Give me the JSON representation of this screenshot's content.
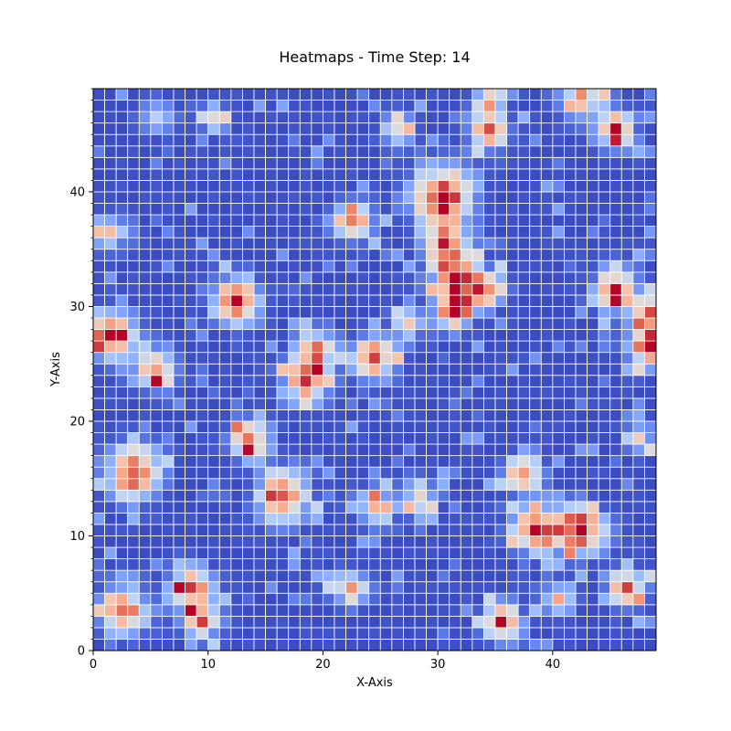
{
  "chart_data": {
    "type": "heatmap",
    "title": "Heatmaps - Time Step: 14",
    "xlabel": "X-Axis",
    "ylabel": "Y-Axis",
    "grid": true,
    "grid_size": [
      49,
      49
    ],
    "xlim": [
      0,
      49
    ],
    "ylim": [
      0,
      49
    ],
    "x_ticks": [
      0,
      10,
      20,
      30,
      40
    ],
    "y_ticks": [
      0,
      10,
      20,
      30,
      40
    ],
    "colormap": "coolwarm",
    "value_range": [
      0,
      1
    ],
    "background_level": 0,
    "hotspots": [
      {
        "x": 1,
        "y": 27,
        "radius": 2.2,
        "intensity": 1.0
      },
      {
        "x": 3,
        "y": 15,
        "radius": 2.5,
        "intensity": 1.0
      },
      {
        "x": 2,
        "y": 3,
        "radius": 2.3,
        "intensity": 0.95
      },
      {
        "x": 8,
        "y": 5,
        "radius": 2.0,
        "intensity": 0.9
      },
      {
        "x": 9,
        "y": 2,
        "radius": 1.6,
        "intensity": 0.85
      },
      {
        "x": 5,
        "y": 24,
        "radius": 2.0,
        "intensity": 0.9
      },
      {
        "x": 5,
        "y": 46,
        "radius": 1.5,
        "intensity": 0.6
      },
      {
        "x": 1,
        "y": 36,
        "radius": 1.7,
        "intensity": 0.7
      },
      {
        "x": 12,
        "y": 30,
        "radius": 2.3,
        "intensity": 0.95
      },
      {
        "x": 13,
        "y": 18,
        "radius": 1.8,
        "intensity": 0.9
      },
      {
        "x": 16,
        "y": 13,
        "radius": 2.4,
        "intensity": 1.0
      },
      {
        "x": 18,
        "y": 23,
        "radius": 2.2,
        "intensity": 0.9
      },
      {
        "x": 19,
        "y": 26,
        "radius": 1.6,
        "intensity": 0.8
      },
      {
        "x": 10,
        "y": 46,
        "radius": 1.5,
        "intensity": 0.6
      },
      {
        "x": 22,
        "y": 37,
        "radius": 1.8,
        "intensity": 0.9
      },
      {
        "x": 22,
        "y": 5,
        "radius": 1.6,
        "intensity": 0.8
      },
      {
        "x": 24,
        "y": 25,
        "radius": 2.0,
        "intensity": 0.95
      },
      {
        "x": 24,
        "y": 12,
        "radius": 1.8,
        "intensity": 0.75
      },
      {
        "x": 26,
        "y": 45,
        "radius": 1.6,
        "intensity": 0.6
      },
      {
        "x": 30,
        "y": 39,
        "radius": 3.0,
        "intensity": 1.0
      },
      {
        "x": 31,
        "y": 32,
        "radius": 2.2,
        "intensity": 0.95
      },
      {
        "x": 31,
        "y": 29,
        "radius": 1.6,
        "intensity": 0.9
      },
      {
        "x": 30,
        "y": 35,
        "radius": 1.6,
        "intensity": 0.75
      },
      {
        "x": 34,
        "y": 45,
        "radius": 1.8,
        "intensity": 0.95
      },
      {
        "x": 34,
        "y": 48,
        "radius": 1.4,
        "intensity": 0.7
      },
      {
        "x": 34,
        "y": 31,
        "radius": 1.6,
        "intensity": 0.8
      },
      {
        "x": 37,
        "y": 15,
        "radius": 1.8,
        "intensity": 0.9
      },
      {
        "x": 35,
        "y": 2,
        "radius": 1.8,
        "intensity": 0.95
      },
      {
        "x": 38,
        "y": 10,
        "radius": 2.2,
        "intensity": 0.95
      },
      {
        "x": 40,
        "y": 4,
        "radius": 1.5,
        "intensity": 0.75
      },
      {
        "x": 42,
        "y": 10,
        "radius": 2.2,
        "intensity": 1.0
      },
      {
        "x": 42,
        "y": 48,
        "radius": 2.0,
        "intensity": 0.8
      },
      {
        "x": 45,
        "y": 31,
        "radius": 2.0,
        "intensity": 0.95
      },
      {
        "x": 45,
        "y": 45,
        "radius": 1.8,
        "intensity": 0.9
      },
      {
        "x": 46,
        "y": 5,
        "radius": 1.8,
        "intensity": 0.9
      },
      {
        "x": 48,
        "y": 26,
        "radius": 2.0,
        "intensity": 1.0
      },
      {
        "x": 48,
        "y": 29,
        "radius": 1.4,
        "intensity": 0.85
      },
      {
        "x": 47,
        "y": 18,
        "radius": 1.4,
        "intensity": 0.7
      },
      {
        "x": 28,
        "y": 13,
        "radius": 1.6,
        "intensity": 0.7
      },
      {
        "x": 27,
        "y": 28,
        "radius": 1.4,
        "intensity": 0.7
      }
    ]
  }
}
